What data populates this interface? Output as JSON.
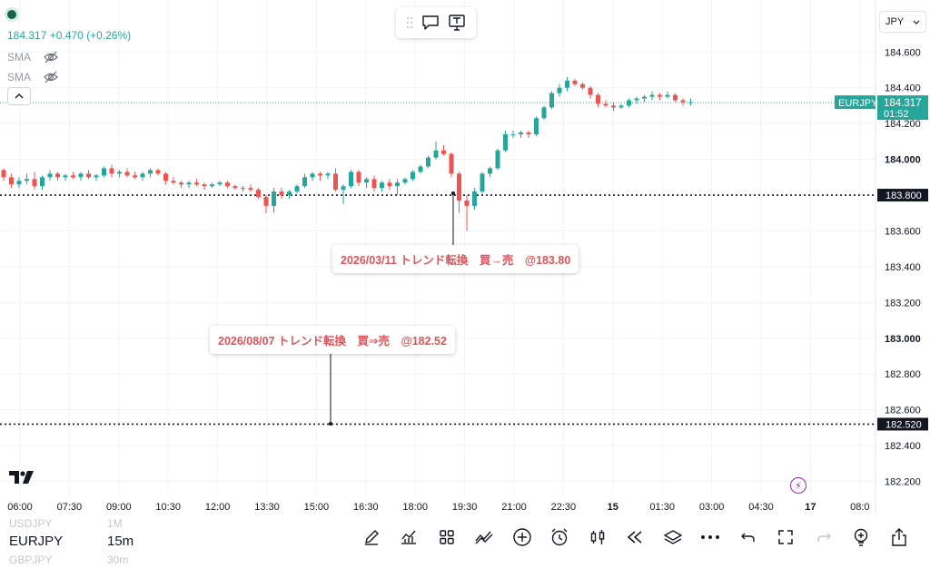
{
  "legend": {
    "price_line": "184.317 +0.470 (+0.26%)",
    "indicators": [
      "SMA",
      "SMA"
    ]
  },
  "currency": {
    "label": "JPY"
  },
  "chart_data": {
    "type": "candlestick",
    "symbol": "EURJPY",
    "price_labels": [
      "184.600",
      "184.400",
      "184.200",
      "184.000",
      "183.600",
      "183.400",
      "183.200",
      "183.000",
      "182.800",
      "182.600",
      "182.400",
      "182.200"
    ],
    "time_labels": [
      "06:00",
      "07:30",
      "09:00",
      "10:30",
      "12:00",
      "13:30",
      "15:00",
      "16:30",
      "18:00",
      "19:30",
      "21:00",
      "22:30",
      "15",
      "01:30",
      "03:00",
      "04:30",
      "17",
      "08:0"
    ],
    "last_price": "184.317",
    "countdown": "01:52",
    "horizontal_lines": [
      {
        "price": 183.8,
        "label": "183.800"
      },
      {
        "price": 182.52,
        "label": "182.520"
      }
    ],
    "candles": [
      [
        183.94,
        183.95,
        183.88,
        183.9
      ],
      [
        183.9,
        183.92,
        183.84,
        183.86
      ],
      [
        183.86,
        183.9,
        183.84,
        183.88
      ],
      [
        183.88,
        183.92,
        183.86,
        183.89
      ],
      [
        183.89,
        183.93,
        183.83,
        183.85
      ],
      [
        183.85,
        183.91,
        183.83,
        183.9
      ],
      [
        183.9,
        183.94,
        183.88,
        183.92
      ],
      [
        183.92,
        183.93,
        183.88,
        183.9
      ],
      [
        183.9,
        183.92,
        183.88,
        183.91
      ],
      [
        183.91,
        183.93,
        183.89,
        183.9
      ],
      [
        183.9,
        183.93,
        183.88,
        183.92
      ],
      [
        183.92,
        183.94,
        183.89,
        183.9
      ],
      [
        183.9,
        183.92,
        183.88,
        183.91
      ],
      [
        183.91,
        183.96,
        183.9,
        183.95
      ],
      [
        183.95,
        183.97,
        183.9,
        183.92
      ],
      [
        183.92,
        183.94,
        183.9,
        183.93
      ],
      [
        183.93,
        183.95,
        183.9,
        183.91
      ],
      [
        183.91,
        183.93,
        183.89,
        183.9
      ],
      [
        183.9,
        183.93,
        183.88,
        183.92
      ],
      [
        183.92,
        183.95,
        183.9,
        183.94
      ],
      [
        183.94,
        183.95,
        183.91,
        183.92
      ],
      [
        183.92,
        183.93,
        183.86,
        183.88
      ],
      [
        183.88,
        183.9,
        183.86,
        183.87
      ],
      [
        183.87,
        183.88,
        183.84,
        183.86
      ],
      [
        183.86,
        183.88,
        183.84,
        183.87
      ],
      [
        183.87,
        183.89,
        183.85,
        183.86
      ],
      [
        183.86,
        183.87,
        183.83,
        183.85
      ],
      [
        183.85,
        183.87,
        183.84,
        183.86
      ],
      [
        183.86,
        183.88,
        183.85,
        183.87
      ],
      [
        183.87,
        183.88,
        183.84,
        183.85
      ],
      [
        183.85,
        183.86,
        183.83,
        183.84
      ],
      [
        183.84,
        183.85,
        183.82,
        183.84
      ],
      [
        183.84,
        183.86,
        183.82,
        183.83
      ],
      [
        183.83,
        183.84,
        183.78,
        183.79
      ],
      [
        183.79,
        183.8,
        183.7,
        183.74
      ],
      [
        183.74,
        183.84,
        183.7,
        183.82
      ],
      [
        183.82,
        183.84,
        183.78,
        183.8
      ],
      [
        183.8,
        183.83,
        183.78,
        183.82
      ],
      [
        183.82,
        183.86,
        183.81,
        183.85
      ],
      [
        183.85,
        183.92,
        183.84,
        183.9
      ],
      [
        183.9,
        183.93,
        183.88,
        183.92
      ],
      [
        183.92,
        183.93,
        183.88,
        183.91
      ],
      [
        183.91,
        183.93,
        183.89,
        183.92
      ],
      [
        183.92,
        183.95,
        183.82,
        183.83
      ],
      [
        183.83,
        183.86,
        183.75,
        183.85
      ],
      [
        183.85,
        183.94,
        183.84,
        183.93
      ],
      [
        183.93,
        183.94,
        183.85,
        183.87
      ],
      [
        183.87,
        183.9,
        183.84,
        183.89
      ],
      [
        183.89,
        183.91,
        183.82,
        183.84
      ],
      [
        183.84,
        183.88,
        183.82,
        183.87
      ],
      [
        183.87,
        183.89,
        183.83,
        183.85
      ],
      [
        183.85,
        183.89,
        183.8,
        183.87
      ],
      [
        183.87,
        183.9,
        183.86,
        183.89
      ],
      [
        183.89,
        183.94,
        183.88,
        183.93
      ],
      [
        183.93,
        183.97,
        183.92,
        183.96
      ],
      [
        183.96,
        184.02,
        183.95,
        184.01
      ],
      [
        184.01,
        184.1,
        184.0,
        184.05
      ],
      [
        184.05,
        184.08,
        184.02,
        184.03
      ],
      [
        184.03,
        184.04,
        183.9,
        183.92
      ],
      [
        183.92,
        183.93,
        183.7,
        183.77
      ],
      [
        183.77,
        183.8,
        183.6,
        183.74
      ],
      [
        183.74,
        183.84,
        183.72,
        183.82
      ],
      [
        183.82,
        183.93,
        183.81,
        183.92
      ],
      [
        183.92,
        183.96,
        183.9,
        183.95
      ],
      [
        183.95,
        184.06,
        183.94,
        184.05
      ],
      [
        184.05,
        184.16,
        184.04,
        184.14
      ],
      [
        184.14,
        184.16,
        184.12,
        184.14
      ],
      [
        184.14,
        184.16,
        184.12,
        184.15
      ],
      [
        184.15,
        184.16,
        184.12,
        184.14
      ],
      [
        184.14,
        184.24,
        184.13,
        184.23
      ],
      [
        184.23,
        184.3,
        184.22,
        184.29
      ],
      [
        184.29,
        184.38,
        184.28,
        184.37
      ],
      [
        184.37,
        184.42,
        184.35,
        184.4
      ],
      [
        184.4,
        184.46,
        184.38,
        184.44
      ],
      [
        184.44,
        184.45,
        184.41,
        184.42
      ],
      [
        184.42,
        184.43,
        184.39,
        184.4
      ],
      [
        184.4,
        184.41,
        184.34,
        184.36
      ],
      [
        184.36,
        184.37,
        184.29,
        184.31
      ],
      [
        184.31,
        184.33,
        184.29,
        184.3
      ],
      [
        184.3,
        184.32,
        184.27,
        184.29
      ],
      [
        184.29,
        184.31,
        184.28,
        184.3
      ],
      [
        184.3,
        184.34,
        184.29,
        184.33
      ],
      [
        184.33,
        184.35,
        184.31,
        184.34
      ],
      [
        184.34,
        184.36,
        184.32,
        184.35
      ],
      [
        184.35,
        184.38,
        184.33,
        184.36
      ],
      [
        184.36,
        184.37,
        184.33,
        184.35
      ],
      [
        184.35,
        184.38,
        184.34,
        184.36
      ],
      [
        184.36,
        184.37,
        184.32,
        184.33
      ],
      [
        184.33,
        184.34,
        184.3,
        184.32
      ],
      [
        184.32,
        184.34,
        184.3,
        184.32
      ]
    ]
  },
  "annotations": [
    {
      "text": "2026/03/11 トレンド転換　買→売　@183.80"
    },
    {
      "text": "2026/08/07 トレンド転換　買⇒売　@182.52"
    }
  ],
  "bottom": {
    "symbols": [
      "USDJPY",
      "EURJPY",
      "GBPJPY"
    ],
    "timeframes": [
      "1M",
      "15m",
      "30m"
    ]
  },
  "colors": {
    "up": "#26a69a",
    "down": "#ef5350",
    "annotation": "#e0535a",
    "last_price_bg": "#26a69a"
  }
}
